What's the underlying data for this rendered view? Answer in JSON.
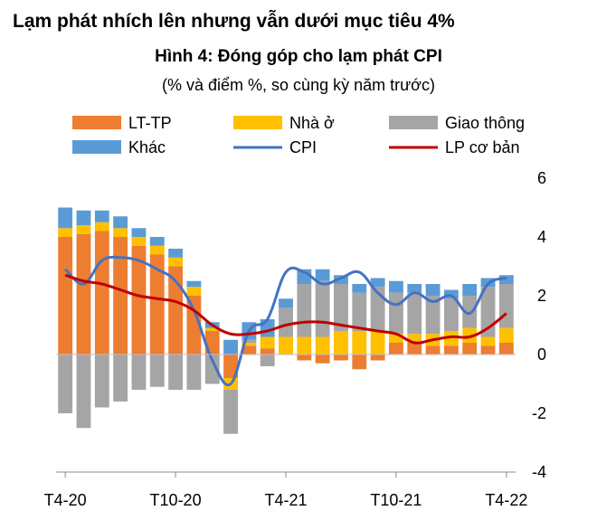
{
  "headline": "Lạm phát nhích lên nhưng vẫn dưới mục tiêu 4%",
  "colors": {
    "food": "#ED7D31",
    "housing": "#FFC000",
    "transport": "#A5A5A5",
    "other": "#5B9BD5",
    "cpi": "#4472C4",
    "core": "#C00000"
  },
  "chart_data": {
    "type": "bar",
    "title": "Hình 4: Đóng góp cho lạm phát CPI",
    "subtitle": "(% và điểm %, so cùng kỳ năm trước)",
    "stacked": true,
    "x_tick_labels": [
      "T4-20",
      "T10-20",
      "T4-21",
      "T10-21",
      "T4-22"
    ],
    "periods": [
      "T4-20",
      "T5-20",
      "T6-20",
      "T7-20",
      "T8-20",
      "T9-20",
      "T10-20",
      "T11-20",
      "T12-20",
      "T1-21",
      "T2-21",
      "T3-21",
      "T4-21",
      "T5-21",
      "T6-21",
      "T7-21",
      "T8-21",
      "T9-21",
      "T10-21",
      "T11-21",
      "T12-21",
      "T1-22",
      "T2-22",
      "T3-22",
      "T4-22"
    ],
    "y_ticks": [
      6,
      4,
      2,
      0,
      -2,
      -4
    ],
    "ylim": [
      -4,
      6
    ],
    "y_axis_position": "right",
    "legend_position": "top",
    "series": [
      {
        "name": "LT-TP",
        "kind": "bar",
        "color_key": "food",
        "values": [
          4.0,
          4.1,
          4.2,
          4.0,
          3.7,
          3.4,
          3.0,
          2.0,
          0.8,
          -0.8,
          0.3,
          0.2,
          0.0,
          -0.2,
          -0.3,
          -0.2,
          -0.5,
          -0.2,
          0.4,
          0.4,
          0.3,
          0.3,
          0.4,
          0.3,
          0.4
        ]
      },
      {
        "name": "Nhà ở",
        "kind": "bar",
        "color_key": "housing",
        "values": [
          0.3,
          0.3,
          0.3,
          0.3,
          0.3,
          0.3,
          0.3,
          0.3,
          0.1,
          -0.4,
          0.1,
          0.4,
          0.6,
          0.6,
          0.6,
          0.8,
          0.8,
          0.8,
          0.3,
          0.3,
          0.4,
          0.5,
          0.5,
          0.3,
          0.5
        ]
      },
      {
        "name": "Giao thông",
        "kind": "bar",
        "color_key": "transport",
        "values": [
          -2.0,
          -2.5,
          -1.8,
          -1.6,
          -1.2,
          -1.1,
          -1.2,
          -1.2,
          -1.0,
          -1.5,
          0.1,
          -0.4,
          1.0,
          1.8,
          1.9,
          1.6,
          1.3,
          1.5,
          1.4,
          1.4,
          1.3,
          1.1,
          1.1,
          1.7,
          1.5
        ]
      },
      {
        "name": "Khác",
        "kind": "bar",
        "color_key": "other",
        "values": [
          0.7,
          0.5,
          0.4,
          0.4,
          0.3,
          0.3,
          0.3,
          0.2,
          0.2,
          0.5,
          0.6,
          0.6,
          0.3,
          0.5,
          0.4,
          0.3,
          0.3,
          0.3,
          0.4,
          0.3,
          0.4,
          0.3,
          0.4,
          0.3,
          0.3
        ]
      },
      {
        "name": "CPI",
        "kind": "line",
        "color_key": "cpi",
        "values": [
          2.9,
          2.4,
          3.2,
          3.3,
          3.2,
          2.9,
          2.5,
          1.5,
          -0.2,
          -1.0,
          0.8,
          1.2,
          2.8,
          2.8,
          2.4,
          2.6,
          2.8,
          2.1,
          1.7,
          2.1,
          1.8,
          2.0,
          1.4,
          2.4,
          2.6
        ]
      },
      {
        "name": "LP cơ bản",
        "kind": "line",
        "color_key": "core",
        "values": [
          2.7,
          2.5,
          2.4,
          2.2,
          2.0,
          1.9,
          1.8,
          1.5,
          1.0,
          0.7,
          0.7,
          0.8,
          1.0,
          1.1,
          1.1,
          1.0,
          0.9,
          0.8,
          0.7,
          0.4,
          0.5,
          0.6,
          0.6,
          0.9,
          1.4
        ]
      }
    ]
  }
}
